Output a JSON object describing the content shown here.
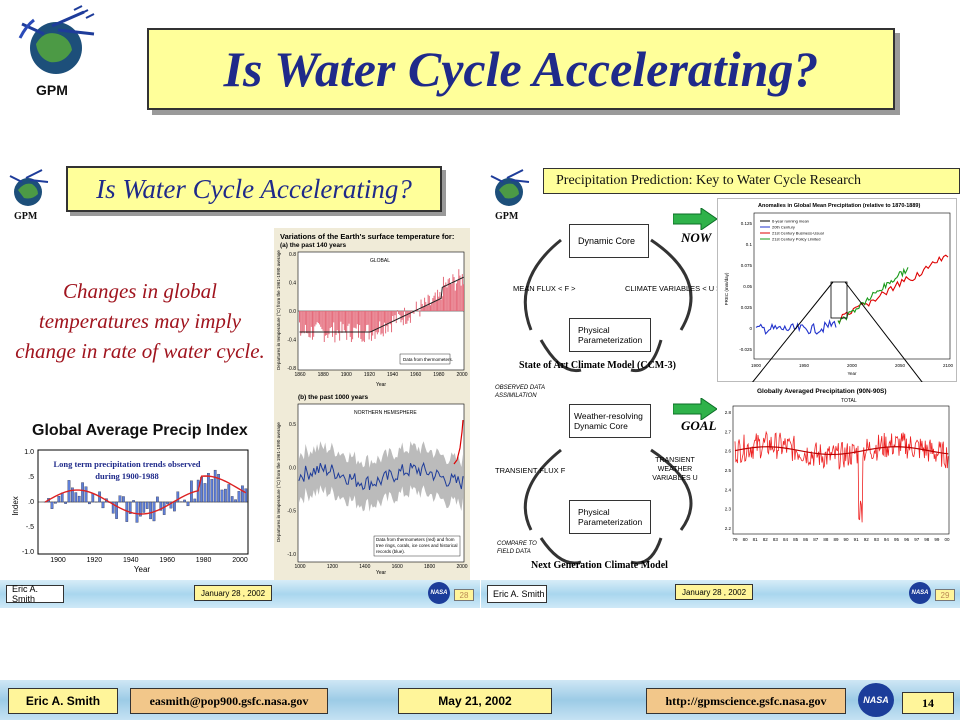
{
  "header": {
    "title": "Is Water Cycle Accelerating?",
    "logo_label": "GPM"
  },
  "left_slide": {
    "logo_label": "GPM",
    "title": "Is Water Cycle Accelerating?",
    "body_text": "Changes in global temperatures may imply change in rate of water cycle.",
    "precip_title": "Global Average Precip Index",
    "precip_annotation": "Long term precipitation trends observed during 1900-1988",
    "precip_ylabel": "Index",
    "precip_xlabel": "Year",
    "precip_yticks": [
      "1.0",
      ".5",
      ".0",
      "-.5",
      "-1.0"
    ],
    "precip_xticks": [
      "1900",
      "1920",
      "1940",
      "1960",
      "1980",
      "2000"
    ],
    "temp_panel_title": "Variations of the Earth's surface temperature for:",
    "temp_a_label": "(a) the past 140 years",
    "temp_a_region": "GLOBAL",
    "temp_a_note": "Data from thermometers.",
    "temp_a_yticks": [
      "0.8",
      "0.4",
      "0.0",
      "-0.4",
      "-0.8"
    ],
    "temp_a_xticks": [
      "1860",
      "1880",
      "1900",
      "1920",
      "1940",
      "1960",
      "1980",
      "2000"
    ],
    "temp_b_label": "(b) the past 1000 years",
    "temp_b_region": "NORTHERN HEMISPHERE",
    "temp_b_note": "Data from thermometers (red) and from tree rings, corals, ice cores and historical records (blue).",
    "temp_b_yticks": [
      "0.5",
      "0.0",
      "-0.5",
      "-1.0"
    ],
    "temp_b_xticks": [
      "1000",
      "1200",
      "1400",
      "1600",
      "1800",
      "2000"
    ],
    "temp_ylabel": "Departures in temperature (°C) from the 1961-1990 average",
    "temp_xlabel": "Year",
    "footer_name": "Eric A. Smith",
    "footer_date": "January 28 , 2002",
    "footer_page": "28"
  },
  "right_slide": {
    "logo_label": "GPM",
    "title": "Precipitation Prediction: Key to Water Cycle Research",
    "now_label": "NOW",
    "goal_label": "GOAL",
    "box_dynamic_core": "Dynamic Core",
    "box_physical_param": "Physical Parameterization",
    "mean_flux": "MEAN FLUX < F >",
    "climate_vars": "CLIMATE VARIABLES < U >",
    "state_model_caption": "State of Art Climate Model (CCM-3)",
    "observed_data": "OBSERVED DATA ASSIMILATION",
    "box_weather_core": "Weather-resolving Dynamic Core",
    "box_physical_param2": "Physical Parameterization",
    "transient_flux": "TRANSIENT FLUX F",
    "transient_vars": "TRANSIENT WEATHER VARIABLES U",
    "compare_field": "COMPARE TO FIELD DATA",
    "next_gen_caption": "Next Generation Climate Model",
    "anomaly_title": "Anomalies in Global Mean Precipitation (relative to 1870-1889)",
    "anomaly_legend": [
      "6-year running mean",
      "20th Century",
      "21st Century Business-Usual",
      "21st Century Policy Limited"
    ],
    "anomaly_ylabel": "PREC (mm/day)",
    "anomaly_xlabel": "Year",
    "anomaly_yticks": [
      "0.125",
      "0.1",
      "0.075",
      "0.05",
      "0.025",
      "0",
      "-0.025"
    ],
    "anomaly_xticks": [
      "1900",
      "1950",
      "2000",
      "2050",
      "2100"
    ],
    "gap_title": "Globally Averaged Precipitation (90N-90S)",
    "gap_subtitle": "TOTAL",
    "gap_yticks": [
      "2.8",
      "2.7",
      "2.6",
      "2.5",
      "2.4",
      "2.3",
      "2.2"
    ],
    "gap_xticks": [
      "79",
      "80",
      "81",
      "82",
      "83",
      "84",
      "85",
      "86",
      "87",
      "88",
      "89",
      "90",
      "91",
      "92",
      "93",
      "94",
      "95",
      "96",
      "97",
      "98",
      "99",
      "00"
    ],
    "footer_name": "Eric A. Smith",
    "footer_date": "January 28 , 2002",
    "footer_page": "29"
  },
  "footer": {
    "name": "Eric A. Smith",
    "email": "easmith@pop900.gsfc.nasa.gov",
    "date": "May 21, 2002",
    "url": "http://gpmscience.gsfc.nasa.gov",
    "page_number": "14",
    "nasa_label": "NASA"
  },
  "colors": {
    "title_bg": "#ffff9a",
    "title_text": "#1f2a8a",
    "red_text": "#a0141e",
    "footer_tan": "#f2c78a",
    "footer_yellow": "#fff59a"
  }
}
